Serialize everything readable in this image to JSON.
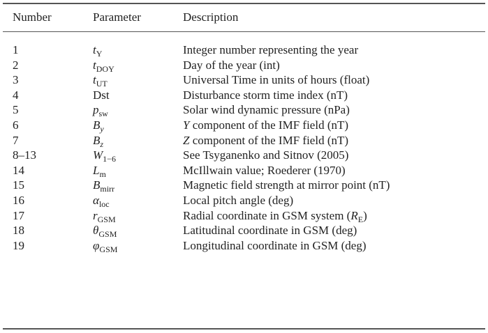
{
  "table": {
    "columns": [
      "Number",
      "Parameter",
      "Description"
    ],
    "rows": [
      {
        "number": "1",
        "parameter": {
          "base": "t",
          "sub": "Y"
        },
        "description": [
          "Integer number representing the year"
        ]
      },
      {
        "number": "2",
        "parameter": {
          "base": "t",
          "sub": "DOY"
        },
        "description": [
          "Day of the year (int)"
        ]
      },
      {
        "number": "3",
        "parameter": {
          "base": "t",
          "sub": "UT"
        },
        "description": [
          "Universal Time in units of hours (float)"
        ]
      },
      {
        "number": "4",
        "parameter": {
          "base": "Dst",
          "italic": false
        },
        "description": [
          "Disturbance storm time index (nT)"
        ]
      },
      {
        "number": "5",
        "parameter": {
          "base": "p",
          "sub": "sw"
        },
        "description": [
          "Solar wind dynamic pressure (nPa)"
        ]
      },
      {
        "number": "6",
        "parameter": {
          "base": "B",
          "sub": "y",
          "sub_italic": true
        },
        "description": [
          {
            "italic": "Y"
          },
          " component of the IMF field (nT)"
        ]
      },
      {
        "number": "7",
        "parameter": {
          "base": "B",
          "sub": "z",
          "sub_italic": true
        },
        "description": [
          {
            "italic": "Z"
          },
          " component of the IMF field (nT)"
        ]
      },
      {
        "number": "8–13",
        "parameter": {
          "base": "W",
          "sub": "1−6"
        },
        "description": [
          "See Tsyganenko and Sitnov (2005)"
        ]
      },
      {
        "number": "14",
        "parameter": {
          "base": "L",
          "sub": "m"
        },
        "description": [
          "McIllwain value; Roederer (1970)"
        ]
      },
      {
        "number": "15",
        "parameter": {
          "base": "B",
          "sub": "mirr"
        },
        "description": [
          "Magnetic field strength at mirror point (nT)"
        ]
      },
      {
        "number": "16",
        "parameter": {
          "base": "α",
          "sub": "loc"
        },
        "description": [
          "Local pitch angle (deg)"
        ]
      },
      {
        "number": "17",
        "parameter": {
          "base": "r",
          "sub": "GSM"
        },
        "description": [
          "Radial coordinate in GSM system (",
          {
            "italic": "R",
            "sub": "E"
          },
          ")"
        ]
      },
      {
        "number": "18",
        "parameter": {
          "base": "θ",
          "sub": "GSM"
        },
        "description": [
          "Latitudinal coordinate in GSM (deg)"
        ]
      },
      {
        "number": "19",
        "parameter": {
          "base": "φ",
          "sub": "GSM"
        },
        "description": [
          "Longitudinal coordinate in GSM (deg)"
        ]
      }
    ]
  }
}
